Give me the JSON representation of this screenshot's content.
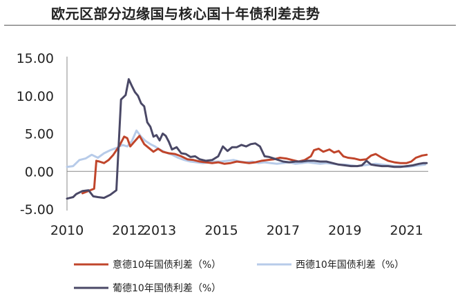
{
  "title": "欧元区部分边缘国与核心国十年债利差走势",
  "chart_data": {
    "type": "line",
    "title": "欧元区部分边缘国与核心国十年债利差走势",
    "xlabel": "",
    "ylabel": "",
    "xlim": [
      2010.0,
      2021.7
    ],
    "ylim": [
      -5,
      15
    ],
    "y_ticks": [
      15,
      10,
      5,
      0,
      -5
    ],
    "y_tick_labels": [
      "15.00",
      "10.00",
      "5.00",
      "0.00",
      "-5.00"
    ],
    "x_ticks": [
      2010,
      2012,
      2013,
      2015,
      2017,
      2019,
      2021
    ],
    "x_tick_labels": [
      "2010",
      "2012",
      "2013",
      "2015",
      "2017",
      "2019",
      "2021"
    ],
    "grid": false,
    "legend_position": "bottom",
    "series": [
      {
        "name": "意德10年国债利差（%）",
        "color": "#c0452b",
        "points": [
          [
            2010.5,
            -2.9
          ],
          [
            2010.88,
            -2.3
          ],
          [
            2010.95,
            1.4
          ],
          [
            2011.05,
            1.3
          ],
          [
            2011.2,
            1.1
          ],
          [
            2011.35,
            1.5
          ],
          [
            2011.5,
            2.2
          ],
          [
            2011.7,
            3.4
          ],
          [
            2011.85,
            4.6
          ],
          [
            2011.95,
            4.4
          ],
          [
            2012.05,
            3.3
          ],
          [
            2012.2,
            4.0
          ],
          [
            2012.35,
            4.7
          ],
          [
            2012.5,
            3.6
          ],
          [
            2012.65,
            3.1
          ],
          [
            2012.8,
            2.6
          ],
          [
            2012.95,
            3.0
          ],
          [
            2013.1,
            2.6
          ],
          [
            2013.3,
            2.4
          ],
          [
            2013.5,
            2.3
          ],
          [
            2013.7,
            2.0
          ],
          [
            2013.9,
            1.6
          ],
          [
            2014.1,
            1.5
          ],
          [
            2014.3,
            1.3
          ],
          [
            2014.5,
            1.2
          ],
          [
            2014.7,
            1.1
          ],
          [
            2014.9,
            1.2
          ],
          [
            2015.1,
            1.0
          ],
          [
            2015.3,
            1.1
          ],
          [
            2015.5,
            1.3
          ],
          [
            2015.7,
            1.2
          ],
          [
            2015.9,
            1.1
          ],
          [
            2016.1,
            1.2
          ],
          [
            2016.3,
            1.4
          ],
          [
            2016.5,
            1.5
          ],
          [
            2016.7,
            1.6
          ],
          [
            2016.9,
            1.8
          ],
          [
            2017.1,
            1.7
          ],
          [
            2017.3,
            1.5
          ],
          [
            2017.5,
            1.3
          ],
          [
            2017.7,
            1.5
          ],
          [
            2017.9,
            2.0
          ],
          [
            2018.0,
            2.8
          ],
          [
            2018.15,
            3.0
          ],
          [
            2018.3,
            2.6
          ],
          [
            2018.5,
            2.9
          ],
          [
            2018.65,
            2.5
          ],
          [
            2018.8,
            2.7
          ],
          [
            2018.95,
            2.0
          ],
          [
            2019.1,
            1.8
          ],
          [
            2019.3,
            1.7
          ],
          [
            2019.5,
            1.5
          ],
          [
            2019.7,
            1.6
          ],
          [
            2019.85,
            2.1
          ],
          [
            2020.0,
            2.3
          ],
          [
            2020.2,
            1.8
          ],
          [
            2020.4,
            1.4
          ],
          [
            2020.6,
            1.2
          ],
          [
            2020.8,
            1.1
          ],
          [
            2021.0,
            1.1
          ],
          [
            2021.15,
            1.3
          ],
          [
            2021.3,
            1.8
          ],
          [
            2021.5,
            2.1
          ],
          [
            2021.65,
            2.2
          ]
        ]
      },
      {
        "name": "西德10年国债利差（%）",
        "color": "#b7cbe9",
        "points": [
          [
            2010.0,
            0.6
          ],
          [
            2010.2,
            0.7
          ],
          [
            2010.4,
            1.5
          ],
          [
            2010.6,
            1.7
          ],
          [
            2010.8,
            2.2
          ],
          [
            2011.0,
            1.8
          ],
          [
            2011.2,
            2.4
          ],
          [
            2011.4,
            2.8
          ],
          [
            2011.6,
            3.1
          ],
          [
            2011.8,
            3.5
          ],
          [
            2011.95,
            3.3
          ],
          [
            2012.1,
            4.0
          ],
          [
            2012.25,
            5.4
          ],
          [
            2012.4,
            4.6
          ],
          [
            2012.55,
            4.0
          ],
          [
            2012.7,
            3.6
          ],
          [
            2012.85,
            3.3
          ],
          [
            2013.0,
            2.9
          ],
          [
            2013.2,
            2.5
          ],
          [
            2013.4,
            2.2
          ],
          [
            2013.6,
            1.8
          ],
          [
            2013.8,
            1.5
          ],
          [
            2014.0,
            1.3
          ],
          [
            2014.2,
            1.2
          ],
          [
            2014.4,
            1.1
          ],
          [
            2014.6,
            1.2
          ],
          [
            2014.8,
            1.3
          ],
          [
            2015.0,
            1.3
          ],
          [
            2015.2,
            1.4
          ],
          [
            2015.4,
            1.5
          ],
          [
            2015.6,
            1.3
          ],
          [
            2015.8,
            1.2
          ],
          [
            2016.0,
            1.3
          ],
          [
            2016.2,
            1.1
          ],
          [
            2016.4,
            1.2
          ],
          [
            2016.6,
            1.1
          ],
          [
            2016.8,
            1.0
          ],
          [
            2017.0,
            1.1
          ],
          [
            2017.2,
            1.2
          ],
          [
            2017.4,
            1.0
          ],
          [
            2017.6,
            1.1
          ],
          [
            2017.8,
            1.2
          ],
          [
            2018.0,
            1.1
          ],
          [
            2018.2,
            1.0
          ],
          [
            2018.4,
            1.1
          ],
          [
            2018.6,
            1.0
          ],
          [
            2018.8,
            0.9
          ],
          [
            2019.0,
            0.9
          ],
          [
            2019.2,
            0.8
          ],
          [
            2019.4,
            0.7
          ],
          [
            2019.6,
            0.8
          ],
          [
            2019.8,
            0.9
          ],
          [
            2020.0,
            1.0
          ],
          [
            2020.2,
            0.9
          ],
          [
            2020.4,
            0.8
          ],
          [
            2020.6,
            0.7
          ],
          [
            2020.8,
            0.7
          ],
          [
            2021.0,
            0.6
          ],
          [
            2021.2,
            0.7
          ],
          [
            2021.4,
            0.8
          ],
          [
            2021.6,
            0.9
          ]
        ]
      },
      {
        "name": "葡德10年国债利差（%）",
        "color": "#4a4866",
        "points": [
          [
            2010.0,
            -3.6
          ],
          [
            2010.1,
            -3.5
          ],
          [
            2010.2,
            -3.4
          ],
          [
            2010.3,
            -3.0
          ],
          [
            2010.5,
            -2.6
          ],
          [
            2010.7,
            -2.5
          ],
          [
            2010.85,
            -3.3
          ],
          [
            2011.0,
            -3.4
          ],
          [
            2011.2,
            -3.5
          ],
          [
            2011.4,
            -3.1
          ],
          [
            2011.6,
            -2.5
          ],
          [
            2011.75,
            9.5
          ],
          [
            2011.9,
            10.1
          ],
          [
            2012.0,
            12.2
          ],
          [
            2012.1,
            11.3
          ],
          [
            2012.2,
            10.5
          ],
          [
            2012.3,
            10.0
          ],
          [
            2012.4,
            9.0
          ],
          [
            2012.5,
            8.6
          ],
          [
            2012.6,
            6.5
          ],
          [
            2012.7,
            5.9
          ],
          [
            2012.8,
            4.6
          ],
          [
            2012.9,
            4.8
          ],
          [
            2013.0,
            4.1
          ],
          [
            2013.1,
            5.0
          ],
          [
            2013.2,
            4.7
          ],
          [
            2013.3,
            3.9
          ],
          [
            2013.4,
            2.9
          ],
          [
            2013.55,
            3.2
          ],
          [
            2013.7,
            2.4
          ],
          [
            2013.85,
            2.3
          ],
          [
            2014.0,
            1.9
          ],
          [
            2014.15,
            2.0
          ],
          [
            2014.3,
            1.6
          ],
          [
            2014.5,
            1.4
          ],
          [
            2014.7,
            1.5
          ],
          [
            2014.9,
            2.0
          ],
          [
            2015.05,
            3.3
          ],
          [
            2015.2,
            2.7
          ],
          [
            2015.35,
            3.2
          ],
          [
            2015.5,
            3.2
          ],
          [
            2015.65,
            3.5
          ],
          [
            2015.8,
            3.3
          ],
          [
            2015.95,
            3.6
          ],
          [
            2016.1,
            3.7
          ],
          [
            2016.25,
            3.3
          ],
          [
            2016.4,
            2.0
          ],
          [
            2016.55,
            1.9
          ],
          [
            2016.7,
            1.7
          ],
          [
            2016.85,
            1.5
          ],
          [
            2017.0,
            1.3
          ],
          [
            2017.2,
            1.2
          ],
          [
            2017.4,
            1.3
          ],
          [
            2017.6,
            1.3
          ],
          [
            2017.8,
            1.4
          ],
          [
            2018.0,
            1.4
          ],
          [
            2018.2,
            1.3
          ],
          [
            2018.4,
            1.3
          ],
          [
            2018.6,
            1.1
          ],
          [
            2018.8,
            0.9
          ],
          [
            2019.0,
            0.8
          ],
          [
            2019.2,
            0.7
          ],
          [
            2019.4,
            0.7
          ],
          [
            2019.55,
            0.8
          ],
          [
            2019.7,
            1.4
          ],
          [
            2019.85,
            0.9
          ],
          [
            2020.0,
            0.8
          ],
          [
            2020.2,
            0.7
          ],
          [
            2020.4,
            0.7
          ],
          [
            2020.6,
            0.6
          ],
          [
            2020.8,
            0.6
          ],
          [
            2021.0,
            0.7
          ],
          [
            2021.2,
            0.8
          ],
          [
            2021.4,
            1.0
          ],
          [
            2021.55,
            1.1
          ],
          [
            2021.65,
            1.1
          ]
        ]
      }
    ]
  }
}
